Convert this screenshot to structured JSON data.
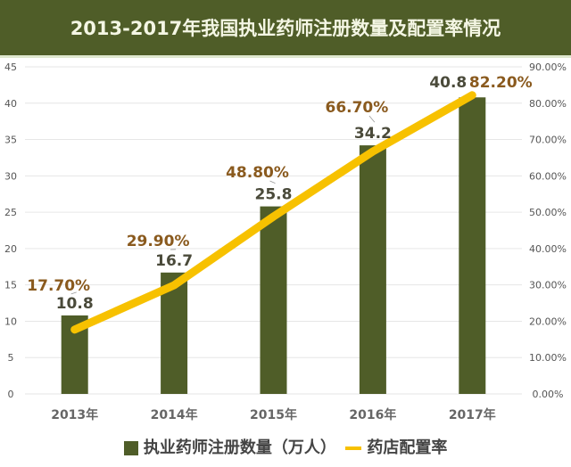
{
  "chart_data": {
    "type": "bar+line",
    "title": "2013-2017年我国执业药师注册数量及配置率情况",
    "categories": [
      "2013年",
      "2014年",
      "2015年",
      "2016年",
      "2017年"
    ],
    "series": [
      {
        "name": "执业药师注册数量（万人）",
        "type": "bar",
        "axis": "left",
        "values": [
          10.8,
          16.7,
          25.8,
          34.2,
          40.8
        ],
        "labels": [
          "10.8",
          "16.7",
          "25.8",
          "34.2",
          "40.8"
        ],
        "color": "#4f5d28"
      },
      {
        "name": "药店配置率",
        "type": "line",
        "axis": "right",
        "values": [
          17.7,
          29.9,
          48.8,
          66.7,
          82.2
        ],
        "labels": [
          "17.70%",
          "29.90%",
          "48.80%",
          "66.70%",
          "82.20%"
        ],
        "color": "#f7c100"
      }
    ],
    "left_axis": {
      "ylim": [
        0,
        45
      ],
      "ticks": [
        "0",
        "5",
        "10",
        "15",
        "20",
        "25",
        "30",
        "35",
        "40",
        "45"
      ]
    },
    "right_axis": {
      "ylim": [
        0,
        90
      ],
      "ticks": [
        "0.00%",
        "10.00%",
        "20.00%",
        "30.00%",
        "40.00%",
        "50.00%",
        "60.00%",
        "70.00%",
        "80.00%",
        "90.00%"
      ]
    },
    "grid": true,
    "legend_position": "bottom",
    "label_color": "#8a5a1e"
  }
}
